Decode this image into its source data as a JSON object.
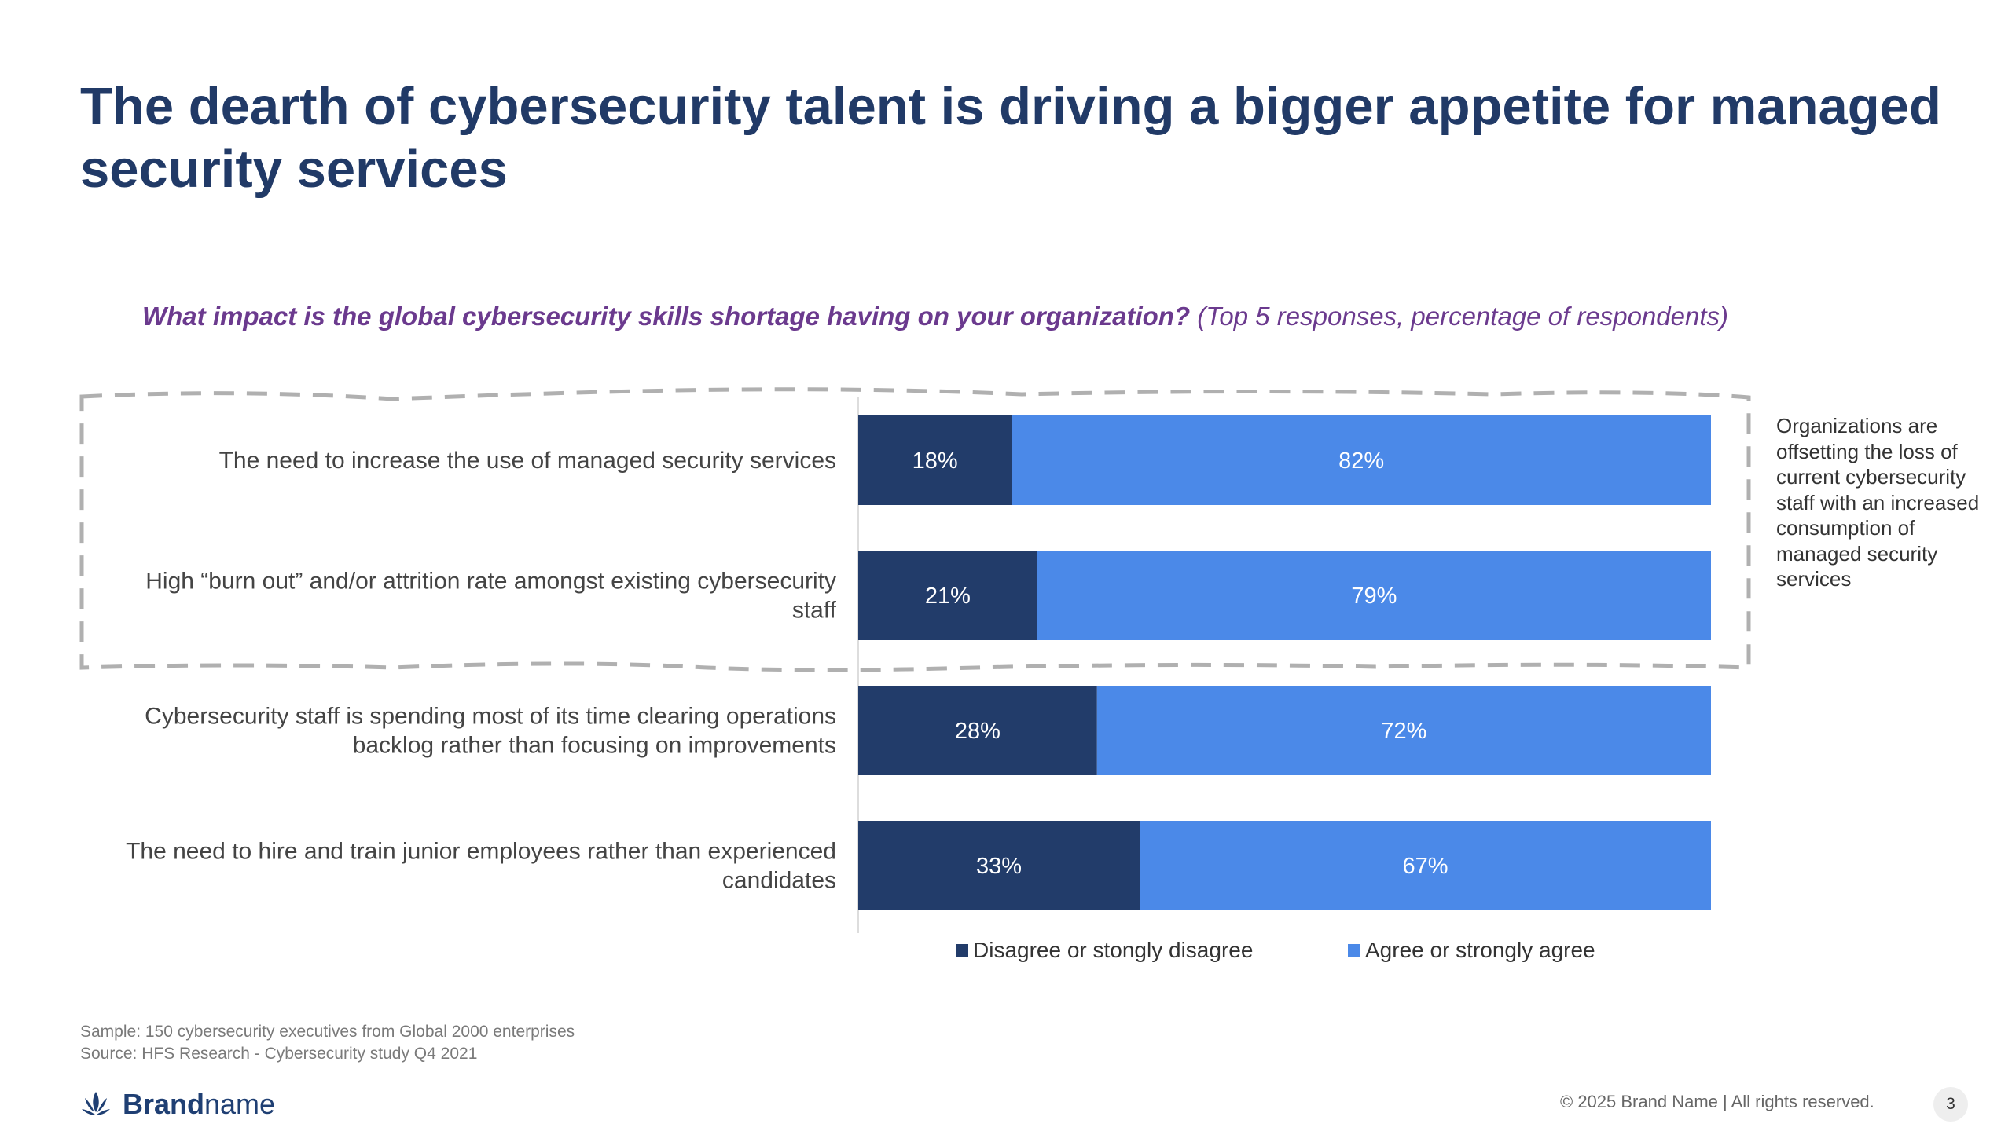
{
  "page": {
    "title": "The dearth of cybersecurity talent is driving a bigger appetite for managed security services",
    "question_bold": "What impact is the global cybersecurity skills shortage having on your organization?",
    "question_note": " (Top 5 responses, percentage of respondents)",
    "callout": "Organizations are offsetting the loss of current cybersecurity staff with an increased consumption of managed security services",
    "sample": "Sample: 150 cybersecurity executives from Global 2000 enterprises",
    "source": "Source: HFS Research - Cybersecurity study Q4 2021",
    "brand_bold": "Brand",
    "brand_rest": "name",
    "copyright": "© 2025 Brand Name | All rights reserved.",
    "page_number": "3"
  },
  "chart_data": {
    "type": "bar",
    "orientation": "horizontal",
    "stacked": true,
    "title": "What impact is the global cybersecurity skills shortage having on your organization? (Top 5 responses, percentage of respondents)",
    "categories": [
      "The need to increase the use of managed security services",
      "High “burn out” and/or attrition rate amongst existing cybersecurity staff",
      "Cybersecurity staff is spending most of its time clearing operations backlog rather than focusing on improvements",
      "The need to hire and train junior employees rather than experienced candidates"
    ],
    "category_lines": [
      [
        "The need to increase the use of managed security services"
      ],
      [
        "High “burn out” and/or attrition rate amongst existing cybersecurity",
        "staff"
      ],
      [
        "Cybersecurity staff is spending most of its time clearing operations",
        "backlog rather than focusing on improvements"
      ],
      [
        "The need to hire and train junior employees rather than experienced",
        "candidates"
      ]
    ],
    "series": [
      {
        "name": "Disagree or stongly disagree",
        "color": "#223c6a",
        "values": [
          18,
          21,
          28,
          33
        ],
        "labels": [
          "18%",
          "21%",
          "28%",
          "33%"
        ]
      },
      {
        "name": "Agree or strongly agree",
        "color": "#4b89e8",
        "values": [
          82,
          79,
          72,
          67
        ],
        "labels": [
          "82%",
          "79%",
          "72%",
          "67%"
        ]
      }
    ],
    "xlim": [
      0,
      100
    ],
    "legend_position": "bottom",
    "highlighted_categories": [
      0,
      1
    ]
  }
}
